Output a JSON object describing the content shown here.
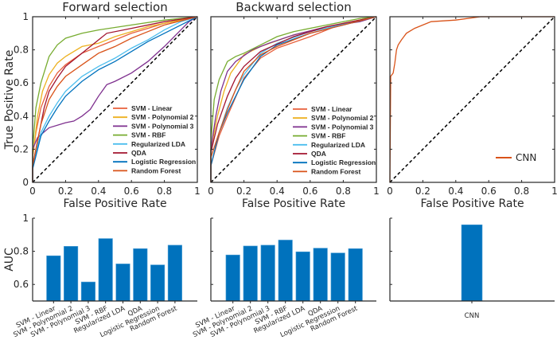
{
  "chart_data": [
    {
      "type": "line",
      "title": "Forward selection",
      "xlabel": "False Positive Rate",
      "ylabel": "True Positive Rate",
      "xlim": [
        0,
        1
      ],
      "ylim": [
        0,
        1
      ],
      "xticks": [
        "0",
        "0.2",
        "0.4",
        "0.6",
        "0.8",
        "1"
      ],
      "yticks": [
        "0",
        "0.2",
        "0.4",
        "0.6",
        "0.8",
        "1"
      ],
      "legend_position": "bottom-right",
      "series": [
        {
          "name": "SVM - Linear",
          "color": "#E8603C",
          "points": [
            [
              0,
              0
            ],
            [
              0,
              0.15
            ],
            [
              0.02,
              0.3
            ],
            [
              0.05,
              0.45
            ],
            [
              0.1,
              0.58
            ],
            [
              0.15,
              0.66
            ],
            [
              0.2,
              0.71
            ],
            [
              0.3,
              0.78
            ],
            [
              0.4,
              0.82
            ],
            [
              0.5,
              0.86
            ],
            [
              0.6,
              0.9
            ],
            [
              0.7,
              0.93
            ],
            [
              0.8,
              0.96
            ],
            [
              0.9,
              0.98
            ],
            [
              1,
              1
            ]
          ]
        },
        {
          "name": "SVM - Polynomial 2",
          "color": "#EDB120",
          "points": [
            [
              0,
              0
            ],
            [
              0,
              0.15
            ],
            [
              0.03,
              0.4
            ],
            [
              0.06,
              0.55
            ],
            [
              0.1,
              0.65
            ],
            [
              0.15,
              0.72
            ],
            [
              0.2,
              0.76
            ],
            [
              0.3,
              0.82
            ],
            [
              0.4,
              0.84
            ],
            [
              0.5,
              0.88
            ],
            [
              0.6,
              0.91
            ],
            [
              0.7,
              0.94
            ],
            [
              0.8,
              0.96
            ],
            [
              1,
              1
            ]
          ]
        },
        {
          "name": "SVM - Polynomial 3",
          "color": "#7E2F8E",
          "points": [
            [
              0,
              0
            ],
            [
              0,
              0.2
            ],
            [
              0.03,
              0.27
            ],
            [
              0.1,
              0.33
            ],
            [
              0.2,
              0.36
            ],
            [
              0.25,
              0.37
            ],
            [
              0.3,
              0.4
            ],
            [
              0.35,
              0.44
            ],
            [
              0.4,
              0.52
            ],
            [
              0.45,
              0.59
            ],
            [
              0.5,
              0.61
            ],
            [
              0.6,
              0.66
            ],
            [
              0.7,
              0.73
            ],
            [
              0.8,
              0.82
            ],
            [
              0.9,
              0.92
            ],
            [
              0.95,
              0.97
            ],
            [
              1,
              1
            ]
          ]
        },
        {
          "name": "SVM - RBF",
          "color": "#77AC30",
          "points": [
            [
              0,
              0
            ],
            [
              0,
              0.2
            ],
            [
              0.02,
              0.45
            ],
            [
              0.05,
              0.6
            ],
            [
              0.1,
              0.76
            ],
            [
              0.15,
              0.83
            ],
            [
              0.2,
              0.87
            ],
            [
              0.3,
              0.9
            ],
            [
              0.4,
              0.92
            ],
            [
              0.6,
              0.95
            ],
            [
              0.8,
              0.98
            ],
            [
              1,
              1
            ]
          ]
        },
        {
          "name": "Regularized LDA",
          "color": "#4DBEEE",
          "points": [
            [
              0,
              0
            ],
            [
              0,
              0.1
            ],
            [
              0.05,
              0.3
            ],
            [
              0.1,
              0.4
            ],
            [
              0.15,
              0.48
            ],
            [
              0.2,
              0.55
            ],
            [
              0.3,
              0.64
            ],
            [
              0.4,
              0.7
            ],
            [
              0.5,
              0.75
            ],
            [
              0.6,
              0.81
            ],
            [
              0.7,
              0.86
            ],
            [
              0.8,
              0.92
            ],
            [
              0.9,
              0.97
            ],
            [
              1,
              1
            ]
          ]
        },
        {
          "name": "QDA",
          "color": "#A2142F",
          "points": [
            [
              0,
              0
            ],
            [
              0,
              0.1
            ],
            [
              0.03,
              0.25
            ],
            [
              0.07,
              0.45
            ],
            [
              0.1,
              0.55
            ],
            [
              0.15,
              0.63
            ],
            [
              0.2,
              0.7
            ],
            [
              0.3,
              0.78
            ],
            [
              0.4,
              0.86
            ],
            [
              0.45,
              0.9
            ],
            [
              0.6,
              0.93
            ],
            [
              0.8,
              0.97
            ],
            [
              1,
              1
            ]
          ]
        },
        {
          "name": "Logistic Regression",
          "color": "#0072BD",
          "points": [
            [
              0,
              0
            ],
            [
              0,
              0.08
            ],
            [
              0.05,
              0.28
            ],
            [
              0.1,
              0.37
            ],
            [
              0.15,
              0.45
            ],
            [
              0.2,
              0.52
            ],
            [
              0.3,
              0.61
            ],
            [
              0.4,
              0.68
            ],
            [
              0.5,
              0.73
            ],
            [
              0.6,
              0.79
            ],
            [
              0.7,
              0.85
            ],
            [
              0.8,
              0.9
            ],
            [
              0.9,
              0.95
            ],
            [
              1,
              1
            ]
          ]
        },
        {
          "name": "Random Forest",
          "color": "#D95319",
          "points": [
            [
              0,
              0
            ],
            [
              0,
              0.1
            ],
            [
              0.05,
              0.35
            ],
            [
              0.1,
              0.5
            ],
            [
              0.15,
              0.58
            ],
            [
              0.2,
              0.64
            ],
            [
              0.3,
              0.71
            ],
            [
              0.4,
              0.78
            ],
            [
              0.5,
              0.82
            ],
            [
              0.6,
              0.87
            ],
            [
              0.7,
              0.91
            ],
            [
              0.8,
              0.95
            ],
            [
              1,
              1
            ]
          ]
        }
      ]
    },
    {
      "type": "line",
      "title": "Backward selection",
      "xlabel": "False Positive Rate",
      "xlim": [
        0,
        1
      ],
      "ylim": [
        0,
        1
      ],
      "xticks": [
        "0",
        "0.2",
        "0.4",
        "0.6",
        "0.8",
        "1"
      ],
      "legend_position": "bottom-right",
      "series": [
        {
          "name": "SVM - Linear",
          "color": "#E8603C",
          "points": [
            [
              0,
              0
            ],
            [
              0,
              0.1
            ],
            [
              0.05,
              0.28
            ],
            [
              0.1,
              0.4
            ],
            [
              0.2,
              0.63
            ],
            [
              0.3,
              0.75
            ],
            [
              0.4,
              0.81
            ],
            [
              0.6,
              0.88
            ],
            [
              0.8,
              0.96
            ],
            [
              1,
              1
            ]
          ]
        },
        {
          "name": "SVM - Polynomial 2",
          "color": "#EDB120",
          "points": [
            [
              0,
              0
            ],
            [
              0,
              0.2
            ],
            [
              0.04,
              0.4
            ],
            [
              0.08,
              0.55
            ],
            [
              0.12,
              0.66
            ],
            [
              0.2,
              0.77
            ],
            [
              0.3,
              0.82
            ],
            [
              0.5,
              0.89
            ],
            [
              0.7,
              0.94
            ],
            [
              1,
              1
            ]
          ]
        },
        {
          "name": "SVM - Polynomial 3",
          "color": "#7E2F8E",
          "points": [
            [
              0,
              0
            ],
            [
              0,
              0.2
            ],
            [
              0.03,
              0.4
            ],
            [
              0.06,
              0.55
            ],
            [
              0.1,
              0.67
            ],
            [
              0.15,
              0.73
            ],
            [
              0.25,
              0.8
            ],
            [
              0.35,
              0.84
            ],
            [
              0.5,
              0.89
            ],
            [
              0.7,
              0.94
            ],
            [
              0.9,
              0.97
            ],
            [
              1,
              1
            ]
          ]
        },
        {
          "name": "SVM - RBF",
          "color": "#77AC30",
          "points": [
            [
              0,
              0
            ],
            [
              0,
              0.25
            ],
            [
              0.02,
              0.5
            ],
            [
              0.05,
              0.62
            ],
            [
              0.1,
              0.73
            ],
            [
              0.15,
              0.76
            ],
            [
              0.2,
              0.78
            ],
            [
              0.3,
              0.83
            ],
            [
              0.4,
              0.88
            ],
            [
              0.5,
              0.91
            ],
            [
              0.7,
              0.95
            ],
            [
              0.9,
              0.99
            ],
            [
              1,
              1
            ]
          ]
        },
        {
          "name": "Regularized LDA",
          "color": "#4DBEEE",
          "points": [
            [
              0,
              0
            ],
            [
              0,
              0.15
            ],
            [
              0.05,
              0.3
            ],
            [
              0.1,
              0.45
            ],
            [
              0.15,
              0.56
            ],
            [
              0.2,
              0.65
            ],
            [
              0.3,
              0.78
            ],
            [
              0.4,
              0.84
            ],
            [
              0.6,
              0.91
            ],
            [
              1,
              1
            ]
          ]
        },
        {
          "name": "QDA",
          "color": "#A2142F",
          "points": [
            [
              0,
              0
            ],
            [
              0,
              0.18
            ],
            [
              0.04,
              0.35
            ],
            [
              0.1,
              0.52
            ],
            [
              0.15,
              0.63
            ],
            [
              0.2,
              0.7
            ],
            [
              0.3,
              0.79
            ],
            [
              0.5,
              0.88
            ],
            [
              0.7,
              0.94
            ],
            [
              1,
              1
            ]
          ]
        },
        {
          "name": "Logistic Regression",
          "color": "#0072BD",
          "points": [
            [
              0,
              0
            ],
            [
              0,
              0.1
            ],
            [
              0.05,
              0.3
            ],
            [
              0.1,
              0.42
            ],
            [
              0.15,
              0.52
            ],
            [
              0.2,
              0.62
            ],
            [
              0.3,
              0.76
            ],
            [
              0.4,
              0.83
            ],
            [
              0.6,
              0.9
            ],
            [
              1,
              1
            ]
          ]
        },
        {
          "name": "Random Forest",
          "color": "#D95319",
          "points": [
            [
              0,
              0
            ],
            [
              0,
              0.15
            ],
            [
              0.05,
              0.3
            ],
            [
              0.1,
              0.44
            ],
            [
              0.15,
              0.56
            ],
            [
              0.2,
              0.67
            ],
            [
              0.3,
              0.77
            ],
            [
              0.4,
              0.82
            ],
            [
              0.6,
              0.9
            ],
            [
              1,
              1
            ]
          ]
        }
      ]
    },
    {
      "type": "line",
      "xlabel": "False Positive Rate",
      "xlim": [
        0,
        1
      ],
      "ylim": [
        0,
        1
      ],
      "xticks": [
        "0",
        "0.2",
        "0.4",
        "0.6",
        "0.8",
        "1"
      ],
      "legend_position": "bottom-right",
      "series": [
        {
          "name": "CNN",
          "color": "#D95319",
          "points": [
            [
              0,
              0
            ],
            [
              0.005,
              0.64
            ],
            [
              0.02,
              0.66
            ],
            [
              0.03,
              0.72
            ],
            [
              0.04,
              0.8
            ],
            [
              0.05,
              0.83
            ],
            [
              0.07,
              0.86
            ],
            [
              0.1,
              0.9
            ],
            [
              0.15,
              0.93
            ],
            [
              0.2,
              0.95
            ],
            [
              0.25,
              0.97
            ],
            [
              0.4,
              0.98
            ],
            [
              0.55,
              1
            ],
            [
              1,
              1
            ]
          ]
        }
      ]
    },
    {
      "type": "bar",
      "ylabel": "AUC",
      "ylim": [
        0.5,
        1
      ],
      "yticks": [
        "0.6",
        "0.8",
        "1"
      ],
      "color": "#0072BD",
      "categories": [
        "SVM - Linear",
        "SVM - Polynomial 2",
        "SVM - Polynomial 3",
        "SVM - RBF",
        "Regularized LDA",
        "QDA",
        "Logistic Regression",
        "Random Forest"
      ],
      "values": [
        0.773,
        0.83,
        0.615,
        0.877,
        0.724,
        0.816,
        0.718,
        0.837
      ]
    },
    {
      "type": "bar",
      "ylim": [
        0.5,
        1
      ],
      "color": "#0072BD",
      "categories": [
        "SVM - Linear",
        "SVM - Polynomial 2",
        "SVM - Polynomial 3",
        "SVM - RBF",
        "Regularized LDA",
        "QDA",
        "Logistic Regression",
        "Random Forest"
      ],
      "values": [
        0.778,
        0.832,
        0.837,
        0.868,
        0.797,
        0.819,
        0.79,
        0.816
      ]
    },
    {
      "type": "bar",
      "ylim": [
        0.5,
        1
      ],
      "color": "#0072BD",
      "categories": [
        "CNN"
      ],
      "values": [
        0.96
      ]
    }
  ]
}
